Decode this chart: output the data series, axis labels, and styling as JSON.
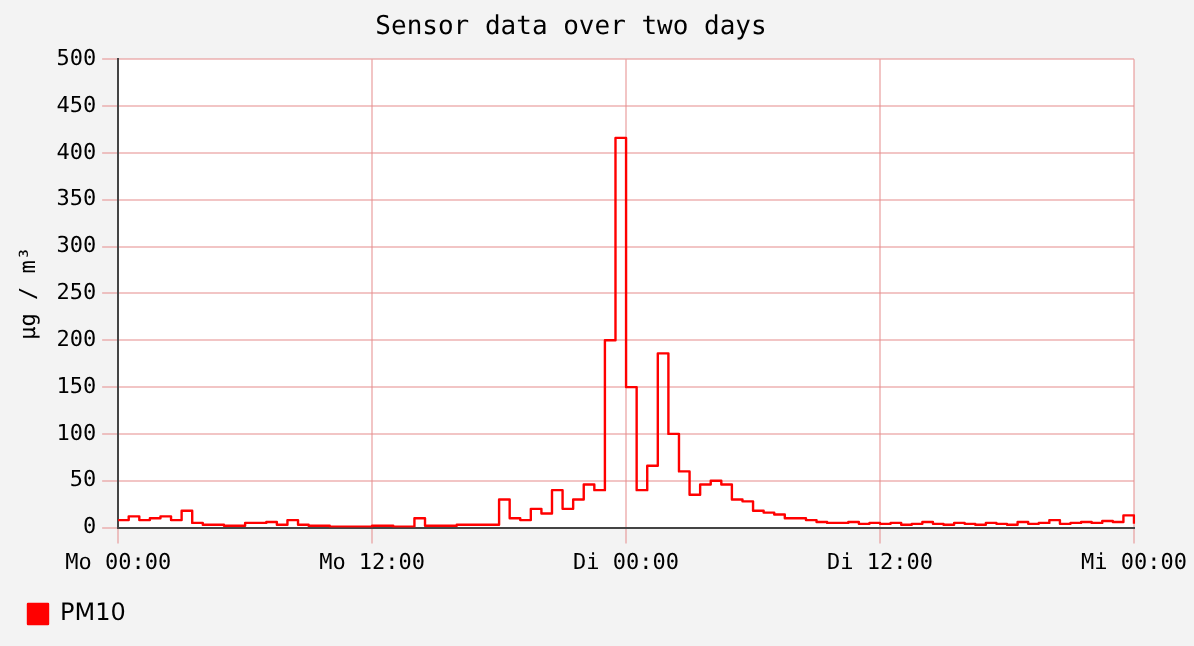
{
  "chart_data": {
    "type": "step",
    "title": "Sensor data over two days",
    "ylabel": "µg / m³",
    "categories": [
      "Mo 00:00",
      null,
      null,
      null,
      null,
      null,
      null,
      null,
      null,
      null,
      null,
      null,
      null,
      null,
      null,
      null,
      null,
      null,
      null,
      null,
      null,
      null,
      null,
      null,
      "Mo 12:00",
      null,
      null,
      null,
      null,
      null,
      null,
      null,
      null,
      null,
      null,
      null,
      null,
      null,
      null,
      null,
      null,
      null,
      null,
      null,
      null,
      null,
      null,
      null,
      "Di 00:00",
      null,
      null,
      null,
      null,
      null,
      null,
      null,
      null,
      null,
      null,
      null,
      null,
      null,
      null,
      null,
      null,
      null,
      null,
      null,
      null,
      null,
      null,
      null,
      "Di 12:00",
      null,
      null,
      null,
      null,
      null,
      null,
      null,
      null,
      null,
      null,
      null,
      null,
      null,
      null,
      null,
      null,
      null,
      null,
      null,
      null,
      null,
      null,
      null,
      "Mi 00:00"
    ],
    "series": [
      {
        "name": "PM10",
        "color": "#ff0000",
        "values": [
          8,
          12,
          8,
          10,
          12,
          8,
          18,
          5,
          3,
          3,
          2,
          2,
          5,
          5,
          6,
          3,
          8,
          3,
          2,
          2,
          1,
          1,
          1,
          1,
          2,
          2,
          1,
          1,
          10,
          2,
          2,
          2,
          3,
          3,
          3,
          3,
          30,
          10,
          8,
          20,
          15,
          40,
          20,
          30,
          46,
          40,
          200,
          416,
          150,
          40,
          66,
          186,
          100,
          60,
          35,
          46,
          50,
          46,
          30,
          28,
          18,
          16,
          14,
          10,
          10,
          8,
          6,
          5,
          5,
          6,
          4,
          5,
          4,
          5,
          3,
          4,
          6,
          4,
          3,
          5,
          4,
          3,
          5,
          4,
          3,
          6,
          4,
          5,
          8,
          4,
          5,
          6,
          5,
          7,
          6,
          13,
          4
        ]
      }
    ],
    "ylim": [
      0,
      500
    ],
    "yticks": [
      0,
      50,
      100,
      150,
      200,
      250,
      300,
      350,
      400,
      450,
      500
    ],
    "grid": true,
    "legend": "bottom left",
    "marker": "none",
    "line_style": "solid"
  }
}
